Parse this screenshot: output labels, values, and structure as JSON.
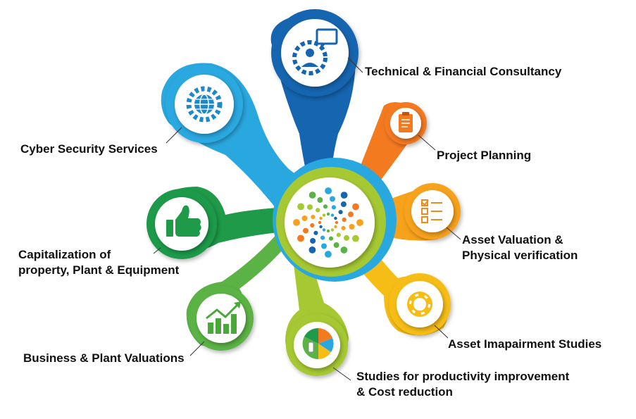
{
  "colors": {
    "blue_dark": "#1565b0",
    "blue_light": "#29a8e0",
    "orange": "#f47a20",
    "amber": "#f7a21b",
    "yellow": "#f6bd16",
    "lime": "#a6c832",
    "green_mid": "#5bb345",
    "green_dark": "#1e9a48"
  },
  "nodes": [
    {
      "id": "technical",
      "label": "Technical & Financial Consultancy",
      "icon": "consultant-gear-chat-icon",
      "color": "#1565b0"
    },
    {
      "id": "cyber",
      "label": "Cyber Security Services",
      "icon": "globe-gear-icon",
      "color": "#29a8e0"
    },
    {
      "id": "project",
      "label": "Project Planning",
      "icon": "clipboard-icon",
      "color": "#f47a20"
    },
    {
      "id": "valuation",
      "label_line1": "Asset Valuation &",
      "label_line2": "Physical verification",
      "icon": "checklist-icon",
      "color": "#f7a21b"
    },
    {
      "id": "impairment",
      "label": "Asset Imapairment Studies",
      "icon": "lifebuoy-icon",
      "color": "#f6bd16"
    },
    {
      "id": "productivity",
      "label_line1": "Studies for productivity improvement",
      "label_line2": "& Cost reduction",
      "icon": "pie-chart-hand-icon",
      "color": "#a6c832"
    },
    {
      "id": "business",
      "label": "Business & Plant Valuations",
      "icon": "bar-chart-growth-icon",
      "color": "#5bb345"
    },
    {
      "id": "capitalization",
      "label_line1": "Capitalization of",
      "label_line2": "property, Plant & Equipment",
      "icon": "thumbs-up-icon",
      "color": "#1e9a48"
    }
  ],
  "center": {
    "icon": "dotted-spiral-logo-icon"
  }
}
